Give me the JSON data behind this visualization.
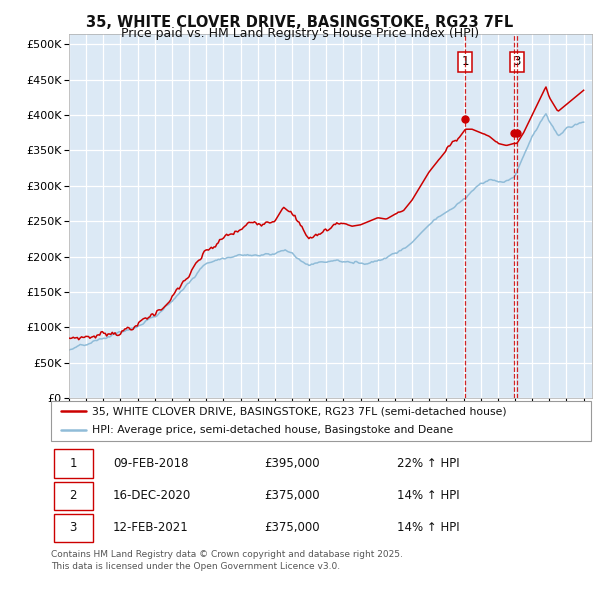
{
  "title1": "35, WHITE CLOVER DRIVE, BASINGSTOKE, RG23 7FL",
  "title2": "Price paid vs. HM Land Registry's House Price Index (HPI)",
  "ylabel_ticks": [
    "£0",
    "£50K",
    "£100K",
    "£150K",
    "£200K",
    "£250K",
    "£300K",
    "£350K",
    "£400K",
    "£450K",
    "£500K"
  ],
  "ytick_values": [
    0,
    50000,
    100000,
    150000,
    200000,
    250000,
    300000,
    350000,
    400000,
    450000,
    500000
  ],
  "ylim": [
    0,
    515000
  ],
  "xlim_start": 1995.0,
  "xlim_end": 2025.5,
  "plot_bg_color": "#dce9f5",
  "grid_color": "#ffffff",
  "red_line_color": "#cc0000",
  "blue_line_color": "#90bcd8",
  "transaction_dates": [
    2018.107,
    2020.958,
    2021.115
  ],
  "transaction_prices": [
    395000,
    375000,
    375000
  ],
  "transaction_labels": [
    "1",
    "2",
    "3"
  ],
  "show_label_on_chart": [
    "1",
    "3"
  ],
  "legend_line1": "35, WHITE CLOVER DRIVE, BASINGSTOKE, RG23 7FL (semi-detached house)",
  "legend_line2": "HPI: Average price, semi-detached house, Basingstoke and Deane",
  "table_rows": [
    [
      "1",
      "09-FEB-2018",
      "£395,000",
      "22% ↑ HPI"
    ],
    [
      "2",
      "16-DEC-2020",
      "£375,000",
      "14% ↑ HPI"
    ],
    [
      "3",
      "12-FEB-2021",
      "£375,000",
      "14% ↑ HPI"
    ]
  ],
  "footer": "Contains HM Land Registry data © Crown copyright and database right 2025.\nThis data is licensed under the Open Government Licence v3.0.",
  "red_keypoints": [
    [
      1995.0,
      85000
    ],
    [
      1996.0,
      90000
    ],
    [
      1997.0,
      95000
    ],
    [
      1998.0,
      105000
    ],
    [
      1999.0,
      115000
    ],
    [
      2000.0,
      130000
    ],
    [
      2001.0,
      155000
    ],
    [
      2002.0,
      185000
    ],
    [
      2003.0,
      210000
    ],
    [
      2004.0,
      225000
    ],
    [
      2005.0,
      235000
    ],
    [
      2006.0,
      245000
    ],
    [
      2007.0,
      265000
    ],
    [
      2007.5,
      285000
    ],
    [
      2008.0,
      275000
    ],
    [
      2008.5,
      255000
    ],
    [
      2009.0,
      240000
    ],
    [
      2009.5,
      245000
    ],
    [
      2010.0,
      250000
    ],
    [
      2010.5,
      260000
    ],
    [
      2011.0,
      262000
    ],
    [
      2011.5,
      258000
    ],
    [
      2012.0,
      260000
    ],
    [
      2012.5,
      265000
    ],
    [
      2013.0,
      270000
    ],
    [
      2013.5,
      268000
    ],
    [
      2014.0,
      275000
    ],
    [
      2014.5,
      280000
    ],
    [
      2015.0,
      295000
    ],
    [
      2015.5,
      315000
    ],
    [
      2016.0,
      335000
    ],
    [
      2016.5,
      350000
    ],
    [
      2017.0,
      365000
    ],
    [
      2017.5,
      375000
    ],
    [
      2018.107,
      395000
    ],
    [
      2018.5,
      395000
    ],
    [
      2019.0,
      390000
    ],
    [
      2019.5,
      385000
    ],
    [
      2020.0,
      375000
    ],
    [
      2020.5,
      372000
    ],
    [
      2020.958,
      375000
    ],
    [
      2021.115,
      375000
    ],
    [
      2021.5,
      390000
    ],
    [
      2022.0,
      415000
    ],
    [
      2022.5,
      440000
    ],
    [
      2022.8,
      455000
    ],
    [
      2023.0,
      440000
    ],
    [
      2023.5,
      420000
    ],
    [
      2024.0,
      430000
    ],
    [
      2024.5,
      440000
    ],
    [
      2025.0,
      450000
    ]
  ],
  "blue_keypoints": [
    [
      1995.0,
      68000
    ],
    [
      1996.0,
      72000
    ],
    [
      1997.0,
      78000
    ],
    [
      1998.0,
      88000
    ],
    [
      1999.0,
      95000
    ],
    [
      2000.0,
      108000
    ],
    [
      2001.0,
      130000
    ],
    [
      2002.0,
      158000
    ],
    [
      2003.0,
      185000
    ],
    [
      2004.0,
      198000
    ],
    [
      2005.0,
      202000
    ],
    [
      2006.0,
      205000
    ],
    [
      2007.0,
      210000
    ],
    [
      2007.5,
      215000
    ],
    [
      2008.0,
      210000
    ],
    [
      2008.5,
      200000
    ],
    [
      2009.0,
      195000
    ],
    [
      2009.5,
      198000
    ],
    [
      2010.0,
      200000
    ],
    [
      2010.5,
      202000
    ],
    [
      2011.0,
      200000
    ],
    [
      2011.5,
      198000
    ],
    [
      2012.0,
      197000
    ],
    [
      2012.5,
      200000
    ],
    [
      2013.0,
      205000
    ],
    [
      2013.5,
      210000
    ],
    [
      2014.0,
      218000
    ],
    [
      2014.5,
      225000
    ],
    [
      2015.0,
      235000
    ],
    [
      2015.5,
      248000
    ],
    [
      2016.0,
      260000
    ],
    [
      2016.5,
      270000
    ],
    [
      2017.0,
      278000
    ],
    [
      2017.5,
      285000
    ],
    [
      2018.0,
      295000
    ],
    [
      2018.5,
      305000
    ],
    [
      2019.0,
      315000
    ],
    [
      2019.5,
      318000
    ],
    [
      2020.0,
      315000
    ],
    [
      2020.5,
      312000
    ],
    [
      2021.0,
      320000
    ],
    [
      2021.5,
      345000
    ],
    [
      2022.0,
      375000
    ],
    [
      2022.5,
      395000
    ],
    [
      2022.8,
      405000
    ],
    [
      2023.0,
      395000
    ],
    [
      2023.5,
      375000
    ],
    [
      2024.0,
      385000
    ],
    [
      2024.5,
      390000
    ],
    [
      2025.0,
      395000
    ]
  ]
}
